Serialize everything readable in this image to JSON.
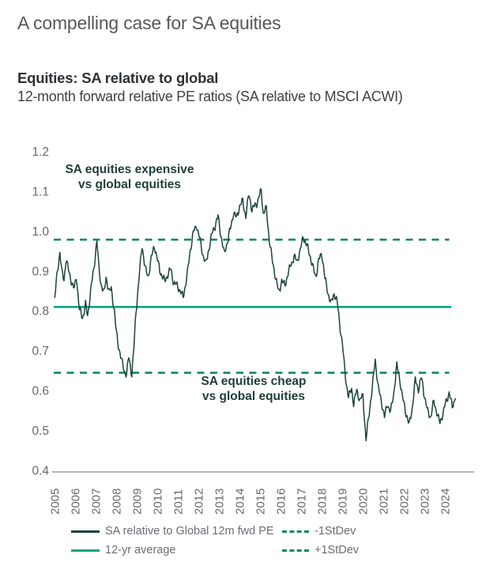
{
  "page": {
    "title": "A compelling case for SA equities"
  },
  "header": {
    "title": "Equities: SA relative to global",
    "subtitle": "12-month forward relative PE ratios (SA relative to MSCI ACWI)"
  },
  "annotations": {
    "expensive": {
      "line1": "SA equities expensive",
      "line2": "vs global equities"
    },
    "cheap": {
      "line1": "SA equities cheap",
      "line2": "vs global equities"
    }
  },
  "legend": [
    {
      "label": "SA relative to Global 12m fwd PE",
      "style": "solid",
      "color": "#1C443D"
    },
    {
      "label": "12-yr average",
      "style": "solid",
      "color": "#12A286"
    },
    {
      "label": "-1StDev",
      "style": "dashed",
      "color": "#11895F"
    },
    {
      "label": "+1StDev",
      "style": "dashed",
      "color": "#11895F"
    }
  ],
  "colors": {
    "series": "#1C443D",
    "average_line": "#12A286",
    "stdev_line": "#11895F",
    "axis_line": "#9EA2A4",
    "tick_text": "#66696D",
    "annotation_text": "#1E3E3A"
  },
  "chart_data": {
    "type": "line",
    "title": "Equities: SA relative to global",
    "xlabel": "",
    "ylabel": "12-month forward relative PE ratio (SA relative to MSCI ACWI)",
    "ylim": [
      0.4,
      1.2
    ],
    "xlim": [
      2004.8,
      2025.4
    ],
    "grid": false,
    "legend_position": "bottom",
    "y_tick_labels": [
      "1.2",
      "1.1",
      "1.0",
      "0.9",
      "0.8",
      "0.7",
      "0.6",
      "0.5",
      "0.4"
    ],
    "y_tick_values": [
      1.2,
      1.1,
      1.0,
      0.9,
      0.8,
      0.7,
      0.6,
      0.5,
      0.4
    ],
    "x_tick_labels": [
      "2005",
      "2006",
      "2007",
      "2008",
      "2009",
      "2010",
      "2011",
      "2012",
      "2013",
      "2014",
      "2015",
      "2016",
      "2017",
      "2018",
      "2019",
      "2020",
      "2021",
      "2022",
      "2023",
      "2024"
    ],
    "x_tick_values": [
      2005,
      2006,
      2007,
      2008,
      2009,
      2010,
      2011,
      2012,
      2013,
      2014,
      2015,
      2016,
      2017,
      2018,
      2019,
      2020,
      2021,
      2022,
      2023,
      2024
    ],
    "reference_lines": [
      {
        "name": "12-yr average",
        "value": 0.81,
        "style": "solid",
        "x_start": 2005.0,
        "x_end": 2024.35
      },
      {
        "name": "+1StDev",
        "value": 0.979,
        "style": "dashed",
        "x_start": 2005.0,
        "x_end": 2024.25
      },
      {
        "name": "-1StDev",
        "value": 0.645,
        "style": "dashed",
        "x_start": 2005.0,
        "x_end": 2024.25
      }
    ],
    "series": [
      {
        "name": "SA relative to Global 12m fwd PE",
        "x": [
          2005.05,
          2005.15,
          2005.3,
          2005.4,
          2005.5,
          2005.6,
          2005.75,
          2005.9,
          2006.0,
          2006.1,
          2006.25,
          2006.4,
          2006.55,
          2006.65,
          2006.8,
          2006.95,
          2007.1,
          2007.2,
          2007.3,
          2007.45,
          2007.55,
          2007.7,
          2007.8,
          2007.95,
          2008.05,
          2008.15,
          2008.3,
          2008.45,
          2008.55,
          2008.65,
          2008.8,
          2008.9,
          2009.0,
          2009.15,
          2009.3,
          2009.45,
          2009.6,
          2009.75,
          2009.9,
          2010.05,
          2010.2,
          2010.4,
          2010.55,
          2010.7,
          2010.85,
          2011.0,
          2011.15,
          2011.3,
          2011.5,
          2011.65,
          2011.8,
          2011.95,
          2012.1,
          2012.25,
          2012.4,
          2012.55,
          2012.7,
          2012.85,
          2013.0,
          2013.15,
          2013.3,
          2013.45,
          2013.6,
          2013.75,
          2013.9,
          2014.05,
          2014.2,
          2014.35,
          2014.5,
          2014.65,
          2014.8,
          2014.95,
          2015.1,
          2015.2,
          2015.35,
          2015.5,
          2015.65,
          2015.8,
          2015.95,
          2016.1,
          2016.25,
          2016.4,
          2016.55,
          2016.7,
          2016.85,
          2017.0,
          2017.15,
          2017.3,
          2017.45,
          2017.6,
          2017.75,
          2017.9,
          2018.05,
          2018.2,
          2018.35,
          2018.5,
          2018.65,
          2018.8,
          2018.95,
          2019.05,
          2019.15,
          2019.25,
          2019.35,
          2019.5,
          2019.6,
          2019.75,
          2019.9,
          2020.05,
          2020.2,
          2020.35,
          2020.5,
          2020.65,
          2020.8,
          2020.95,
          2021.1,
          2021.25,
          2021.4,
          2021.55,
          2021.7,
          2021.85,
          2022.0,
          2022.15,
          2022.3,
          2022.45,
          2022.6,
          2022.75,
          2022.9,
          2023.05,
          2023.2,
          2023.35,
          2023.5,
          2023.65,
          2023.8,
          2023.95,
          2024.1,
          2024.25,
          2024.4,
          2024.55
        ],
        "y": [
          0.83,
          0.88,
          0.95,
          0.9,
          0.88,
          0.93,
          0.89,
          0.87,
          0.86,
          0.89,
          0.8,
          0.78,
          0.82,
          0.79,
          0.85,
          0.9,
          0.98,
          0.91,
          0.87,
          0.84,
          0.88,
          0.85,
          0.86,
          0.8,
          0.74,
          0.71,
          0.68,
          0.65,
          0.64,
          0.68,
          0.64,
          0.71,
          0.8,
          0.88,
          0.96,
          0.91,
          0.89,
          0.93,
          0.96,
          0.93,
          0.9,
          0.87,
          0.89,
          0.91,
          0.87,
          0.86,
          0.85,
          0.84,
          0.89,
          0.95,
          1.0,
          1.02,
          0.98,
          0.94,
          0.92,
          0.96,
          0.99,
          1.01,
          1.04,
          0.99,
          0.94,
          0.97,
          1.01,
          1.05,
          1.03,
          1.06,
          1.08,
          1.04,
          1.09,
          1.05,
          1.07,
          1.08,
          1.1,
          1.04,
          1.06,
          0.98,
          0.92,
          0.88,
          0.85,
          0.88,
          0.86,
          0.89,
          0.92,
          0.94,
          0.92,
          0.95,
          0.99,
          0.97,
          0.94,
          0.91,
          0.89,
          0.93,
          0.94,
          0.88,
          0.85,
          0.82,
          0.84,
          0.82,
          0.76,
          0.72,
          0.66,
          0.61,
          0.58,
          0.61,
          0.57,
          0.6,
          0.57,
          0.59,
          0.48,
          0.54,
          0.6,
          0.68,
          0.61,
          0.57,
          0.53,
          0.57,
          0.55,
          0.59,
          0.66,
          0.63,
          0.58,
          0.54,
          0.51,
          0.56,
          0.63,
          0.6,
          0.63,
          0.59,
          0.55,
          0.53,
          0.57,
          0.55,
          0.52,
          0.54,
          0.57,
          0.6,
          0.56,
          0.58
        ]
      }
    ]
  }
}
